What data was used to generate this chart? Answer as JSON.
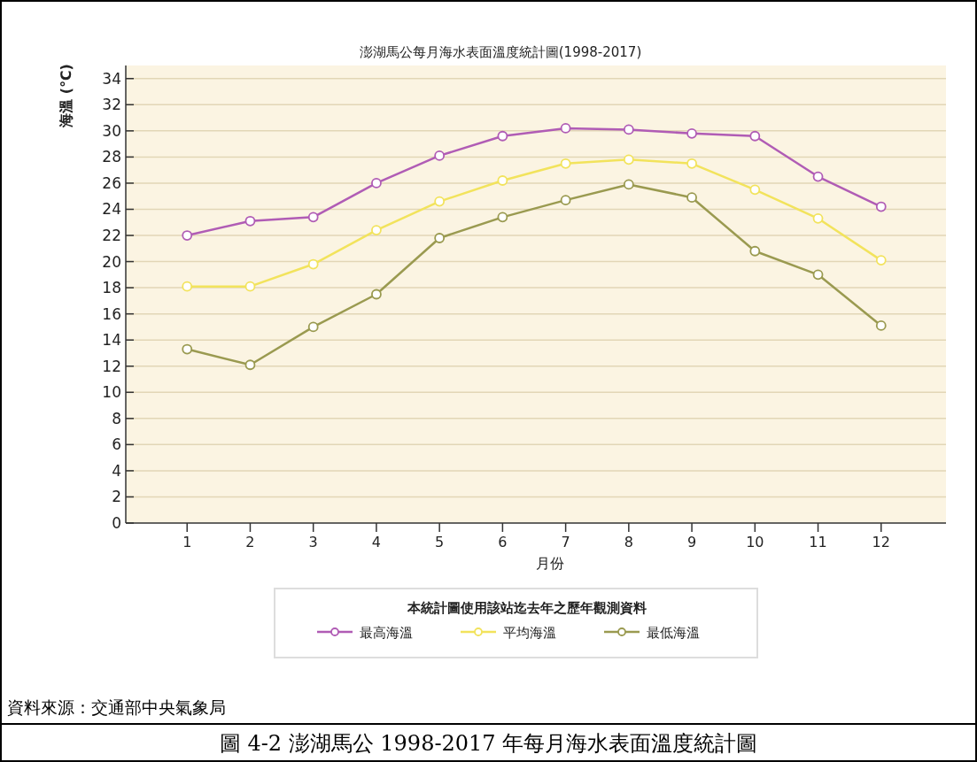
{
  "chart_data": {
    "type": "line",
    "title": "澎湖馬公每月海水表面溫度統計圖(1998-2017)",
    "xlabel": "月份",
    "ylabel": "海溫 (℃)",
    "categories": [
      "1",
      "2",
      "3",
      "4",
      "5",
      "6",
      "7",
      "8",
      "9",
      "10",
      "11",
      "12"
    ],
    "series": [
      {
        "name": "最高海溫",
        "color": "#b05cb5",
        "values": [
          22.0,
          23.1,
          23.4,
          26.0,
          28.1,
          29.6,
          30.2,
          30.1,
          29.8,
          29.6,
          26.5,
          24.2
        ]
      },
      {
        "name": "平均海溫",
        "color": "#f2e35c",
        "values": [
          18.1,
          18.1,
          19.8,
          22.4,
          24.6,
          26.2,
          27.5,
          27.8,
          27.5,
          25.5,
          23.3,
          20.1
        ]
      },
      {
        "name": "最低海溫",
        "color": "#9a9a50",
        "values": [
          13.3,
          12.1,
          15.0,
          17.5,
          21.8,
          23.4,
          24.7,
          25.9,
          24.9,
          20.8,
          19.0,
          15.1
        ]
      }
    ],
    "ylim": [
      0,
      35
    ],
    "yticks": [
      0,
      2,
      4,
      6,
      8,
      10,
      12,
      14,
      16,
      18,
      20,
      22,
      24,
      26,
      28,
      30,
      32,
      34
    ],
    "grid": "y",
    "marker": "circle",
    "legend": "bottom",
    "legend_title": "本統計圖使用該站迄去年之歷年觀測資料",
    "annotations": [
      "資料來源：交通部中央氣象局",
      "圖 4-2 澎湖馬公 1998-2017 年每月海水表面溫度統計圖"
    ]
  }
}
